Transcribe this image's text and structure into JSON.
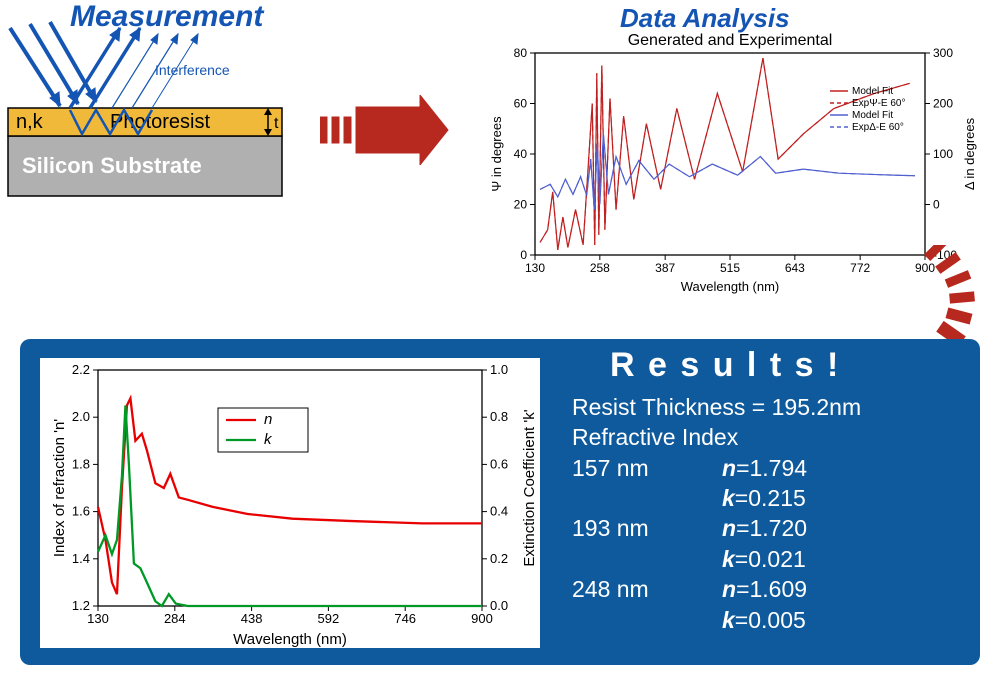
{
  "titles": {
    "measurement": "Measurement",
    "dataAnalysis": "Data Analysis",
    "results": "R e s u l t s !"
  },
  "titleStyle": {
    "measurement_color": "#1455b4",
    "dataAnalysis_color": "#1455b4",
    "measurement_fontsize": 30,
    "dataAnalysis_fontsize": 26,
    "results_fontsize": 34,
    "font_family": "Arial"
  },
  "diagram": {
    "interference_label": "Interference",
    "interference_color": "#1455b4",
    "photoresist_label": "Photoresist",
    "nk_label": "n,k",
    "t_label": "t",
    "substrate_label": "Silicon Substrate",
    "photoresist_fill": "#f1b93a",
    "substrate_fill": "#b0b0b0",
    "border_color": "#000000",
    "arrow_color": "#1455b4"
  },
  "flowArrow": {
    "color": "#b7291f"
  },
  "topChart": {
    "title": "Generated and Experimental",
    "xlabel": "Wavelength (nm)",
    "ylabel_left": "Ψ in degrees",
    "ylabel_right": "Δ in degrees",
    "x_min": 130,
    "x_max": 900,
    "x_ticks": [
      130,
      258,
      387,
      515,
      643,
      772,
      900
    ],
    "yl_min": 0,
    "yl_max": 80,
    "yl_ticks": [
      0,
      20,
      40,
      60,
      80
    ],
    "yr_min": -100,
    "yr_max": 300,
    "yr_ticks": [
      -100,
      0,
      100,
      200,
      300
    ],
    "frame_color": "#000000",
    "grid_visible": false,
    "title_fontsize": 16,
    "axis_fontsize": 13,
    "tick_fontsize": 12,
    "line_width": 1.2,
    "legend": [
      "Model Fit",
      "ExpΨ-E 60°",
      "Model Fit",
      "ExpΔ-E 60°"
    ],
    "legend_colors": [
      "#c02020",
      "#c02020",
      "#5060d0",
      "#5060d0"
    ],
    "legend_dash": [
      "solid",
      "dash",
      "solid",
      "dash"
    ],
    "legend_fontsize": 10,
    "psi_color": "#c02020",
    "delta_color": "#5060d0",
    "psi": [
      [
        140,
        5
      ],
      [
        155,
        10
      ],
      [
        165,
        25
      ],
      [
        175,
        2
      ],
      [
        185,
        15
      ],
      [
        195,
        3
      ],
      [
        210,
        18
      ],
      [
        225,
        4
      ],
      [
        235,
        35
      ],
      [
        243,
        60
      ],
      [
        248,
        4
      ],
      [
        252,
        72
      ],
      [
        256,
        8
      ],
      [
        262,
        75
      ],
      [
        268,
        10
      ],
      [
        278,
        62
      ],
      [
        290,
        18
      ],
      [
        305,
        55
      ],
      [
        325,
        22
      ],
      [
        350,
        52
      ],
      [
        378,
        26
      ],
      [
        410,
        58
      ],
      [
        445,
        30
      ],
      [
        490,
        64
      ],
      [
        540,
        33
      ],
      [
        580,
        78
      ],
      [
        610,
        38
      ],
      [
        660,
        48
      ],
      [
        720,
        58
      ],
      [
        800,
        64
      ],
      [
        870,
        68
      ]
    ],
    "delta": [
      [
        140,
        30
      ],
      [
        160,
        40
      ],
      [
        175,
        15
      ],
      [
        190,
        50
      ],
      [
        205,
        20
      ],
      [
        220,
        55
      ],
      [
        232,
        18
      ],
      [
        240,
        90
      ],
      [
        247,
        -10
      ],
      [
        253,
        120
      ],
      [
        258,
        0
      ],
      [
        265,
        140
      ],
      [
        275,
        20
      ],
      [
        290,
        95
      ],
      [
        310,
        40
      ],
      [
        335,
        87
      ],
      [
        365,
        50
      ],
      [
        395,
        80
      ],
      [
        435,
        55
      ],
      [
        480,
        80
      ],
      [
        530,
        58
      ],
      [
        575,
        95
      ],
      [
        605,
        62
      ],
      [
        660,
        70
      ],
      [
        730,
        62
      ],
      [
        810,
        59
      ],
      [
        880,
        57
      ]
    ]
  },
  "resultsPanel": {
    "bg": "#0f5a9c",
    "text_color": "#ffffff",
    "border_radius": 10,
    "inner_bg": "#ffffff",
    "lines": {
      "thickness": "Resist Thickness = 195.2nm",
      "ri": "Refractive Index",
      "rows": [
        {
          "wl": "157 nm",
          "n": "n=1.794",
          "k": "k=0.215"
        },
        {
          "wl": "193 nm",
          "n": "n=1.720",
          "k": "k=0.021"
        },
        {
          "wl": "248 nm",
          "n": "n=1.609",
          "k": "k=0.005"
        }
      ]
    },
    "body_fontsize": 23
  },
  "bottomChart": {
    "xlabel": "Wavelength (nm)",
    "ylabel_left": "Index of refraction 'n'",
    "ylabel_right": "Extinction Coefficient 'k'",
    "x_min": 130,
    "x_max": 900,
    "x_ticks": [
      130,
      284,
      438,
      592,
      746,
      900
    ],
    "yl_min": 1.2,
    "yl_max": 2.2,
    "yl_ticks": [
      "1.2",
      "1.4",
      "1.6",
      "1.8",
      "2.0",
      "2.2"
    ],
    "yr_min": 0.0,
    "yr_max": 1.0,
    "yr_ticks": [
      "0.0",
      "0.2",
      "0.4",
      "0.6",
      "0.8",
      "1.0"
    ],
    "frame_color": "#000000",
    "axis_fontsize": 15,
    "tick_fontsize": 13,
    "line_width": 2.3,
    "legend": [
      {
        "label": "n",
        "color": "#e80000",
        "style": "italic"
      },
      {
        "label": "k",
        "color": "#009926",
        "style": "italic"
      }
    ],
    "legend_box_border": "#000000",
    "n_color": "#e80000",
    "k_color": "#009926",
    "n_series": [
      [
        130,
        1.62
      ],
      [
        145,
        1.48
      ],
      [
        158,
        1.3
      ],
      [
        168,
        1.25
      ],
      [
        178,
        1.7
      ],
      [
        188,
        2.05
      ],
      [
        195,
        2.08
      ],
      [
        205,
        1.9
      ],
      [
        218,
        1.93
      ],
      [
        228,
        1.86
      ],
      [
        245,
        1.72
      ],
      [
        262,
        1.7
      ],
      [
        275,
        1.76
      ],
      [
        292,
        1.66
      ],
      [
        310,
        1.65
      ],
      [
        360,
        1.62
      ],
      [
        430,
        1.59
      ],
      [
        520,
        1.57
      ],
      [
        640,
        1.56
      ],
      [
        780,
        1.55
      ],
      [
        900,
        1.55
      ]
    ],
    "k_series": [
      [
        130,
        0.23
      ],
      [
        145,
        0.3
      ],
      [
        158,
        0.22
      ],
      [
        168,
        0.28
      ],
      [
        178,
        0.55
      ],
      [
        185,
        0.85
      ],
      [
        192,
        0.6
      ],
      [
        202,
        0.18
      ],
      [
        215,
        0.16
      ],
      [
        228,
        0.1
      ],
      [
        245,
        0.02
      ],
      [
        258,
        0.0
      ],
      [
        272,
        0.05
      ],
      [
        286,
        0.01
      ],
      [
        310,
        0.0
      ],
      [
        400,
        0.0
      ],
      [
        600,
        0.0
      ],
      [
        900,
        0.0
      ]
    ]
  }
}
